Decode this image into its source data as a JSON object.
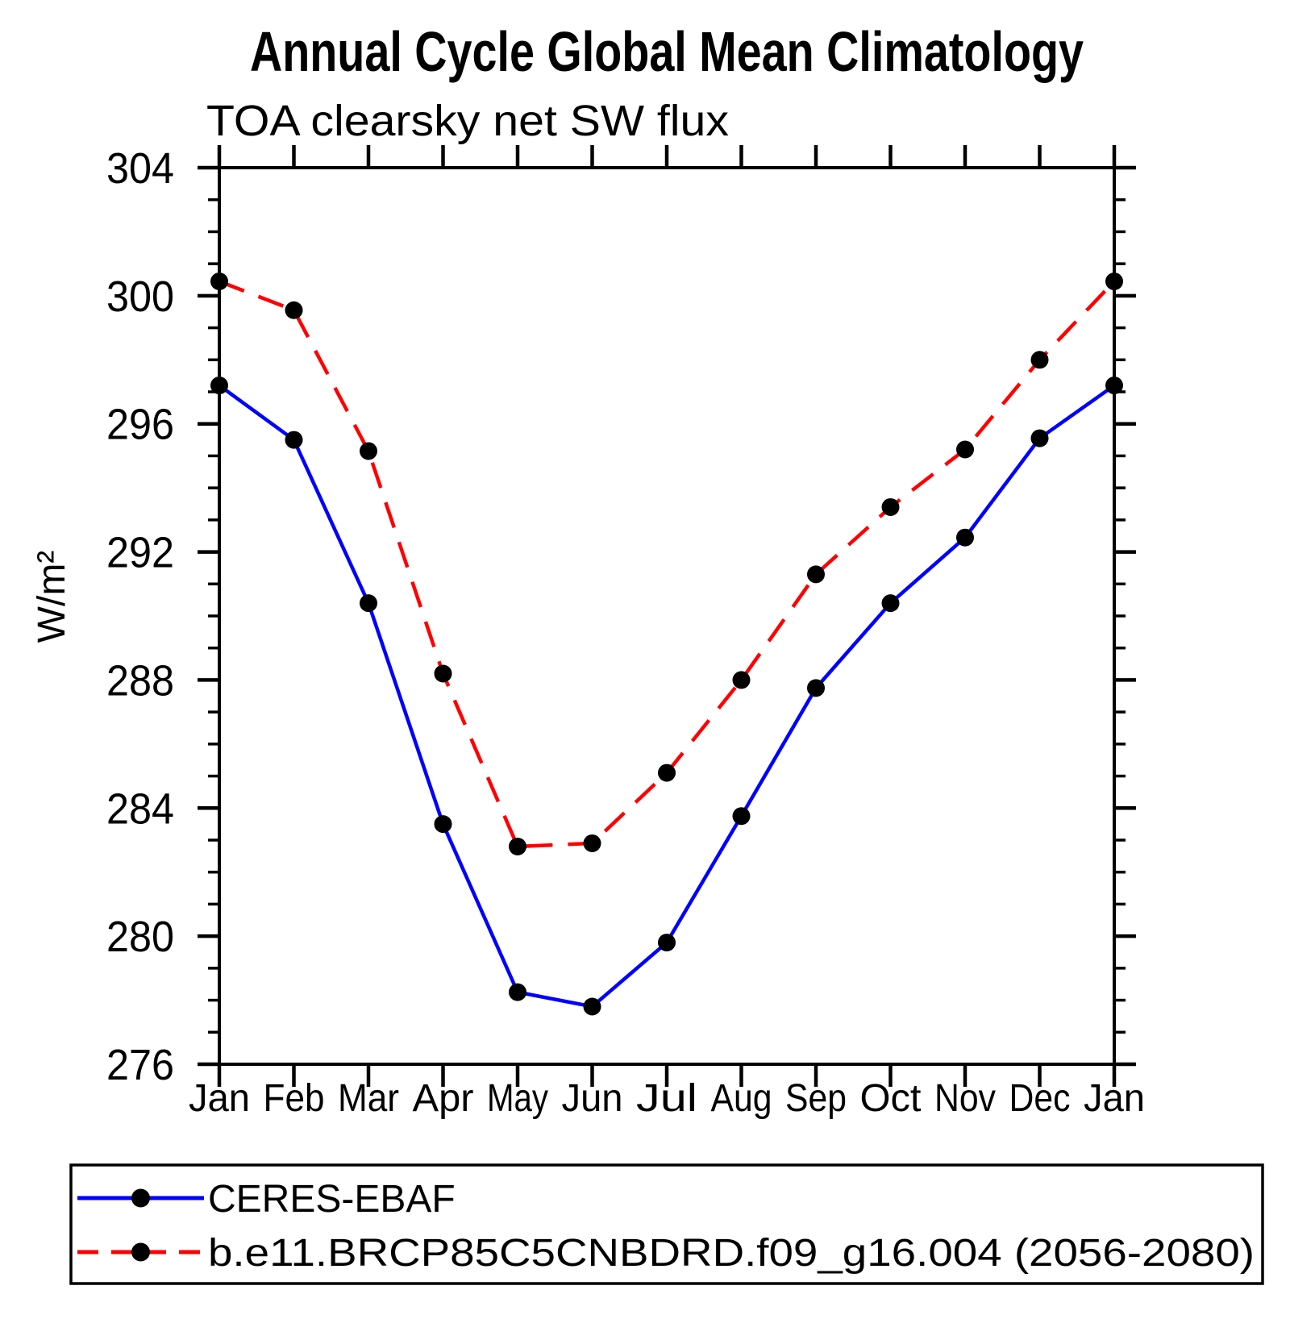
{
  "chart_data": {
    "type": "line",
    "title": "Annual Cycle Global Mean Climatology",
    "subtitle": "TOA clearsky net SW flux",
    "xlabel": "",
    "ylabel": "W/m²",
    "categories": [
      "Jan",
      "Feb",
      "Mar",
      "Apr",
      "May",
      "Jun",
      "Jul",
      "Aug",
      "Sep",
      "Oct",
      "Nov",
      "Dec",
      "Jan"
    ],
    "ylim": [
      276,
      304
    ],
    "ytick_major_values": [
      276,
      280,
      284,
      288,
      292,
      296,
      300,
      304
    ],
    "ytick_labels": [
      "276",
      "280",
      "284",
      "288",
      "292",
      "296",
      "300",
      "304"
    ],
    "ytick_minor_step": 1,
    "grid": false,
    "legend_position": "bottom-box",
    "axis_color": "#000000",
    "background_color": "#ffffff",
    "marker": {
      "shape": "circle",
      "color": "#000000"
    },
    "series": [
      {
        "name": "CERES-EBAF",
        "color": "#0000ff",
        "style": "solid",
        "values": [
          297.2,
          295.5,
          290.4,
          283.5,
          278.25,
          277.8,
          279.8,
          283.75,
          287.75,
          290.4,
          292.45,
          295.55,
          297.2
        ]
      },
      {
        "name": "b.e11.BRCP85C5CNBDRD.f09_g16.004 (2056-2080)",
        "color": "#ff0000",
        "style": "dashed",
        "values": [
          300.45,
          299.55,
          295.15,
          288.2,
          282.8,
          282.9,
          285.1,
          288.0,
          291.3,
          293.4,
          295.2,
          298.0,
          300.45
        ]
      }
    ]
  }
}
